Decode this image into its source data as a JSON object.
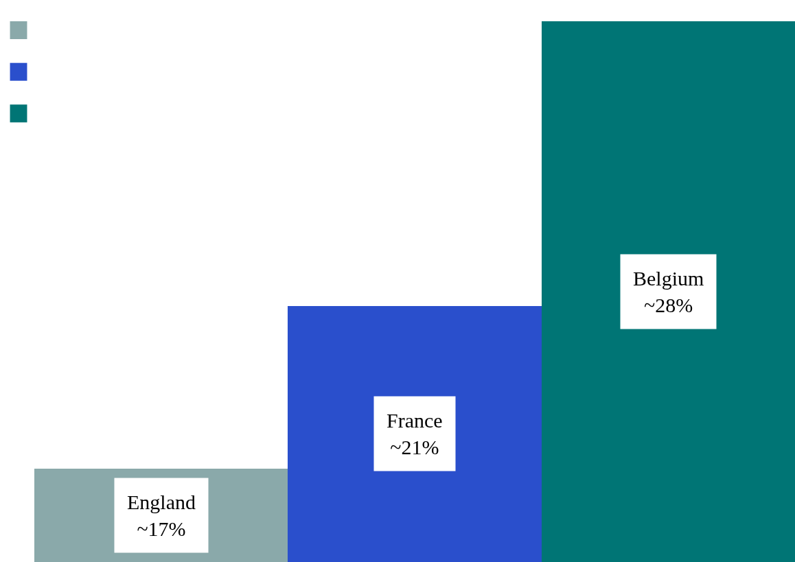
{
  "chart_data": {
    "type": "bar",
    "categories": [
      "England",
      "France",
      "Belgium"
    ],
    "values": [
      17,
      21,
      28
    ],
    "colors": [
      "#8aa9aa",
      "#2a4fcc",
      "#007575"
    ],
    "value_labels": [
      "~17%",
      "~21%",
      "~28%"
    ],
    "ylim": [
      14.7,
      28
    ],
    "tick_labels": false
  }
}
